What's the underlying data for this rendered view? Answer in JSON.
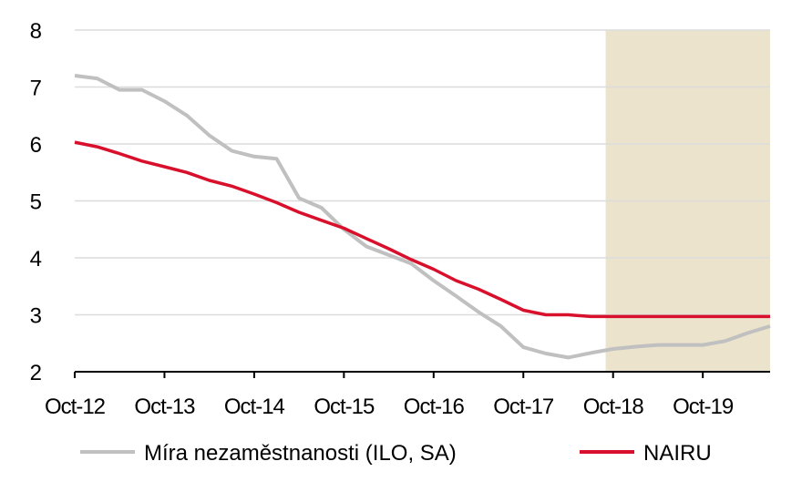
{
  "chart_data": {
    "type": "line",
    "title": "",
    "xlabel": "",
    "ylabel": "",
    "x": [
      "Oct-12",
      "Jan-13",
      "Apr-13",
      "Jul-13",
      "Oct-13",
      "Jan-14",
      "Apr-14",
      "Jul-14",
      "Oct-14",
      "Jan-15",
      "Apr-15",
      "Jul-15",
      "Oct-15",
      "Jan-16",
      "Apr-16",
      "Jul-16",
      "Oct-16",
      "Jan-17",
      "Apr-17",
      "Jul-17",
      "Oct-17",
      "Jan-18",
      "Apr-18",
      "Jul-18",
      "Oct-18",
      "Jan-19",
      "Apr-19",
      "Jul-19",
      "Oct-19",
      "Jan-20",
      "Apr-20",
      "Jul-20"
    ],
    "x_tick_labels": [
      "Oct-12",
      "Oct-13",
      "Oct-14",
      "Oct-15",
      "Oct-16",
      "Oct-17",
      "Oct-18",
      "Oct-19"
    ],
    "ylim": [
      2,
      8
    ],
    "y_ticks": [
      2,
      3,
      4,
      5,
      6,
      7,
      8
    ],
    "grid": "horizontal",
    "legend": "bottom",
    "forecast_shading": {
      "from": "Sep-18",
      "to": "Jul-20",
      "color": "#ece3cc"
    },
    "series": [
      {
        "name": "Míra nezaměstnanosti (ILO, SA)",
        "color": "#c0c0c0",
        "values": [
          7.2,
          7.15,
          6.95,
          6.95,
          6.75,
          6.5,
          6.15,
          5.88,
          5.78,
          5.74,
          5.05,
          4.88,
          4.5,
          4.2,
          4.05,
          3.9,
          3.6,
          3.33,
          3.05,
          2.8,
          2.43,
          2.32,
          2.25,
          2.33,
          2.4,
          2.44,
          2.47,
          2.47,
          2.47,
          2.54,
          2.68,
          2.8
        ]
      },
      {
        "name": "NAIRU",
        "color": "#d8102c",
        "values": [
          6.03,
          5.95,
          5.83,
          5.7,
          5.6,
          5.5,
          5.36,
          5.26,
          5.12,
          4.97,
          4.8,
          4.66,
          4.52,
          4.34,
          4.16,
          3.97,
          3.8,
          3.6,
          3.45,
          3.27,
          3.08,
          3.0,
          3.0,
          2.97,
          2.97,
          2.97,
          2.97,
          2.97,
          2.97,
          2.97,
          2.97,
          2.97
        ]
      }
    ]
  }
}
